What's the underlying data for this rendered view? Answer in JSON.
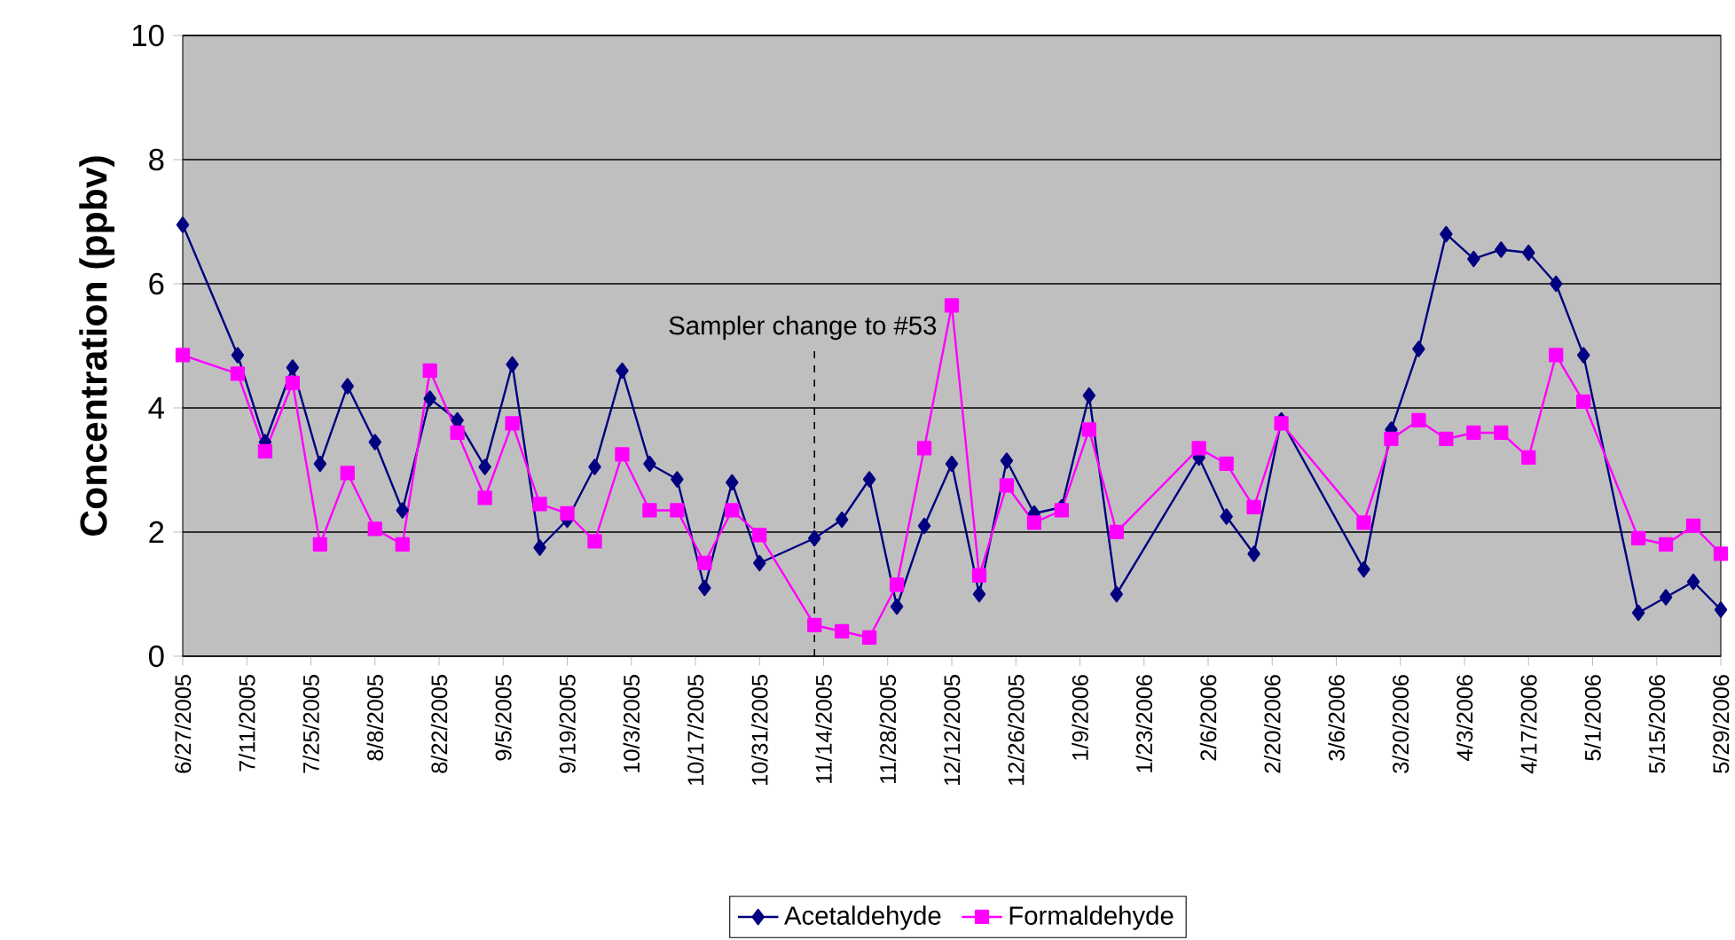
{
  "chart_data": {
    "type": "line",
    "ylabel": "Concentration (ppbv)",
    "x": [
      "2005-06-27",
      "2005-07-09",
      "2005-07-15",
      "2005-07-21",
      "2005-07-27",
      "2005-08-02",
      "2005-08-08",
      "2005-08-14",
      "2005-08-20",
      "2005-08-26",
      "2005-09-01",
      "2005-09-07",
      "2005-09-13",
      "2005-09-19",
      "2005-09-25",
      "2005-10-01",
      "2005-10-07",
      "2005-10-13",
      "2005-10-19",
      "2005-10-25",
      "2005-10-31",
      "2005-11-12",
      "2005-11-18",
      "2005-11-24",
      "2005-11-30",
      "2005-12-06",
      "2005-12-12",
      "2005-12-18",
      "2005-12-24",
      "2005-12-30",
      "2006-01-05",
      "2006-01-11",
      "2006-01-17",
      "2006-02-04",
      "2006-02-10",
      "2006-02-16",
      "2006-02-22",
      "2006-03-12",
      "2006-03-18",
      "2006-03-24",
      "2006-03-30",
      "2006-04-05",
      "2006-04-11",
      "2006-04-17",
      "2006-04-23",
      "2006-04-29",
      "2006-05-11",
      "2006-05-17",
      "2006-05-23",
      "2006-05-29"
    ],
    "series": [
      {
        "name": "Acetaldehyde",
        "color": "#000080",
        "marker": "diamond",
        "values": [
          6.95,
          4.85,
          3.45,
          4.65,
          3.1,
          4.35,
          3.45,
          2.35,
          4.15,
          3.8,
          3.05,
          4.7,
          1.75,
          2.2,
          3.05,
          4.6,
          3.1,
          2.85,
          1.1,
          2.8,
          1.5,
          1.9,
          2.2,
          2.85,
          0.8,
          2.1,
          3.1,
          1.0,
          3.15,
          2.3,
          2.4,
          4.2,
          1.0,
          3.2,
          2.25,
          1.65,
          3.8,
          1.4,
          3.65,
          4.95,
          6.8,
          6.4,
          6.55,
          6.5,
          6.0,
          4.85,
          0.7,
          0.95,
          1.2,
          0.75
        ]
      },
      {
        "name": "Formaldehyde",
        "color": "#ff00ff",
        "marker": "square",
        "values": [
          4.85,
          4.55,
          3.3,
          4.4,
          1.8,
          2.95,
          2.05,
          1.8,
          4.6,
          3.6,
          2.55,
          3.75,
          2.45,
          2.3,
          1.85,
          3.25,
          2.35,
          2.35,
          1.5,
          2.35,
          1.95,
          0.5,
          0.4,
          0.3,
          1.15,
          3.35,
          5.65,
          1.3,
          2.75,
          2.15,
          2.35,
          3.65,
          2.0,
          3.35,
          3.1,
          2.4,
          3.75,
          2.15,
          3.5,
          3.8,
          3.5,
          3.6,
          3.6,
          3.2,
          4.85,
          4.1,
          1.9,
          1.8,
          2.1,
          1.65
        ]
      }
    ],
    "xlim": [
      "2005-06-27",
      "2006-05-29"
    ],
    "xticks": [
      {
        "value": "2005-06-27",
        "label": "6/27/2005"
      },
      {
        "value": "2005-07-11",
        "label": "7/11/2005"
      },
      {
        "value": "2005-07-25",
        "label": "7/25/2005"
      },
      {
        "value": "2005-08-08",
        "label": "8/8/2005"
      },
      {
        "value": "2005-08-22",
        "label": "8/22/2005"
      },
      {
        "value": "2005-09-05",
        "label": "9/5/2005"
      },
      {
        "value": "2005-09-19",
        "label": "9/19/2005"
      },
      {
        "value": "2005-10-03",
        "label": "10/3/2005"
      },
      {
        "value": "2005-10-17",
        "label": "10/17/2005"
      },
      {
        "value": "2005-10-31",
        "label": "10/31/2005"
      },
      {
        "value": "2005-11-14",
        "label": "11/14/2005"
      },
      {
        "value": "2005-11-28",
        "label": "11/28/2005"
      },
      {
        "value": "2005-12-12",
        "label": "12/12/2005"
      },
      {
        "value": "2005-12-26",
        "label": "12/26/2005"
      },
      {
        "value": "2006-01-09",
        "label": "1/9/2006"
      },
      {
        "value": "2006-01-23",
        "label": "1/23/2006"
      },
      {
        "value": "2006-02-06",
        "label": "2/6/2006"
      },
      {
        "value": "2006-02-20",
        "label": "2/20/2006"
      },
      {
        "value": "2006-03-06",
        "label": "3/6/2006"
      },
      {
        "value": "2006-03-20",
        "label": "3/20/2006"
      },
      {
        "value": "2006-04-03",
        "label": "4/3/2006"
      },
      {
        "value": "2006-04-17",
        "label": "4/17/2006"
      },
      {
        "value": "2006-05-01",
        "label": "5/1/2006"
      },
      {
        "value": "2006-05-15",
        "label": "5/15/2006"
      },
      {
        "value": "2006-05-29",
        "label": "5/29/2006"
      }
    ],
    "ylim": [
      0,
      10
    ],
    "yticks": [
      0,
      2,
      4,
      6,
      8,
      10
    ],
    "grid": "y",
    "legend": "bottom",
    "ref_lines": [
      {
        "axis": "x",
        "value": "2005-11-12",
        "label": "Sampler change to #53",
        "line_style": "dashed",
        "color": "#000000"
      }
    ]
  }
}
